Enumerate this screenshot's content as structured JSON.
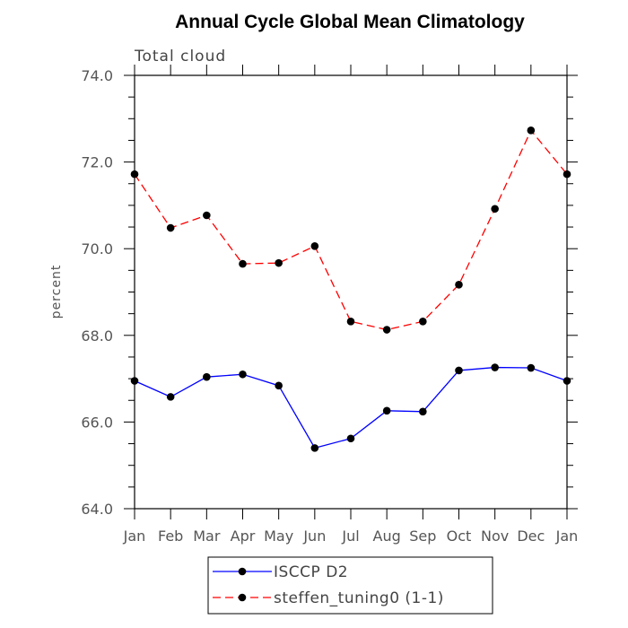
{
  "chart_data": {
    "type": "line",
    "title": "Annual Cycle Global Mean Climatology",
    "subtitle": "Total cloud",
    "xlabel": "",
    "ylabel": "percent",
    "categories": [
      "Jan",
      "Feb",
      "Mar",
      "Apr",
      "May",
      "Jun",
      "Jul",
      "Aug",
      "Sep",
      "Oct",
      "Nov",
      "Dec",
      "Jan"
    ],
    "ylim": [
      64.0,
      74.0
    ],
    "yticks": [
      64.0,
      66.0,
      68.0,
      70.0,
      72.0,
      74.0
    ],
    "ytick_labels": [
      "64.0",
      "66.0",
      "68.0",
      "70.0",
      "72.0",
      "74.0"
    ],
    "grid": false,
    "legend_position": "bottom",
    "series": [
      {
        "name": "ISCCP D2",
        "color": "#0000ff",
        "dash": "solid",
        "marker": "circle",
        "values": [
          66.95,
          66.58,
          67.04,
          67.1,
          66.84,
          65.4,
          65.62,
          66.26,
          66.24,
          67.19,
          67.26,
          67.25,
          66.95
        ]
      },
      {
        "name": "steffen_tuning0 (1-1)",
        "color": "#ff0000",
        "dash": "dashed",
        "marker": "circle",
        "values": [
          71.72,
          70.48,
          70.77,
          69.65,
          69.67,
          70.06,
          68.32,
          68.13,
          68.32,
          69.17,
          70.92,
          72.73,
          71.72
        ]
      }
    ]
  }
}
